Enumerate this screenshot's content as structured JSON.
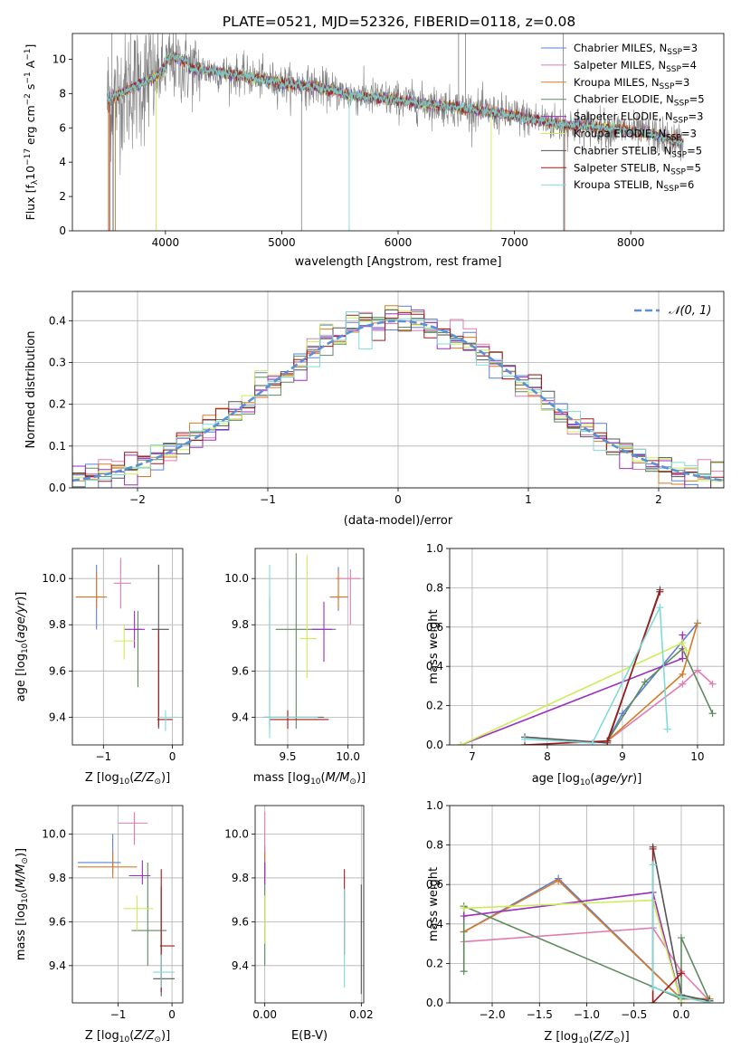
{
  "figure_title": "PLATE=0521, MJD=52326, FIBERID=0118, z=0.08",
  "colors": {
    "Chabrier MILES": "#5b7fd6",
    "Salpeter MILES": "#e27bb2",
    "Kroupa MILES": "#d77a25",
    "Chabrier ELODIE": "#5e8a5e",
    "Salpeter ELODIE": "#9b2fbf",
    "Kroupa ELODIE": "#cdec5a",
    "Chabrier STELIB": "#555555",
    "Salpeter STELIB": "#a11a1a",
    "Kroupa STELIB": "#7fdada",
    "data": "#7f7f7f",
    "normal": "#5b8fd6"
  },
  "spectrum_legend": [
    {
      "name": "Chabrier MILES",
      "label": "Chabrier MILES, N",
      "sub": "SSP",
      "val": "=3"
    },
    {
      "name": "Salpeter MILES",
      "label": "Salpeter MILES, N",
      "sub": "SSP",
      "val": "=4"
    },
    {
      "name": "Kroupa MILES",
      "label": "Kroupa MILES, N",
      "sub": "SSP",
      "val": "=3"
    },
    {
      "name": "Chabrier ELODIE",
      "label": "Chabrier ELODIE, N",
      "sub": "SSP",
      "val": "=5"
    },
    {
      "name": "Salpeter ELODIE",
      "label": "Salpeter ELODIE, N",
      "sub": "SSP",
      "val": "=3"
    },
    {
      "name": "Kroupa ELODIE",
      "label": "Kroupa ELODIE, N",
      "sub": "SSP",
      "val": "=3"
    },
    {
      "name": "Chabrier STELIB",
      "label": "Chabrier STELIB, N",
      "sub": "SSP",
      "val": "=5"
    },
    {
      "name": "Salpeter STELIB",
      "label": "Salpeter STELIB, N",
      "sub": "SSP",
      "val": "=5"
    },
    {
      "name": "Kroupa STELIB",
      "label": "Kroupa STELIB, N",
      "sub": "SSP",
      "val": "=6"
    }
  ],
  "chart_data": [
    {
      "id": "spectrum",
      "type": "line",
      "xlabel": "wavelength [Angstrom, rest frame]",
      "ylabel": "Flux [f",
      "ylabel_parts": [
        "Flux [f",
        "λ",
        "10",
        "−17",
        " erg cm",
        "−2",
        " s",
        "−1",
        " A",
        "−1",
        "]"
      ],
      "xlim": [
        3200,
        8800
      ],
      "ylim": [
        0,
        11.5
      ],
      "xticks": [
        4000,
        5000,
        6000,
        7000,
        8000
      ],
      "yticks": [
        0,
        2,
        4,
        6,
        8,
        10
      ],
      "anchors": [
        [
          3500,
          7.6
        ],
        [
          3700,
          8.3
        ],
        [
          3900,
          8.9
        ],
        [
          4050,
          9.8
        ],
        [
          4150,
          9.5
        ],
        [
          4400,
          9.3
        ],
        [
          4700,
          9.0
        ],
        [
          5000,
          8.6
        ],
        [
          5300,
          8.4
        ],
        [
          5600,
          7.9
        ],
        [
          6000,
          7.6
        ],
        [
          6500,
          7.2
        ],
        [
          7000,
          6.7
        ],
        [
          7400,
          6.2
        ],
        [
          7900,
          5.9
        ],
        [
          8200,
          5.6
        ],
        [
          8500,
          5.0
        ]
      ],
      "grid": false,
      "legend": "upper-right"
    },
    {
      "id": "residuals",
      "type": "histogram",
      "xlabel": "(data-model)/error",
      "ylabel": "Normed distribution",
      "xlim": [
        -2.5,
        2.5
      ],
      "ylim": [
        0,
        0.47
      ],
      "xticks": [
        -2,
        -1,
        0,
        1,
        2
      ],
      "yticks": [
        0.0,
        0.1,
        0.2,
        0.3,
        0.4
      ],
      "bin_width": 0.1,
      "normal_label": "𝒩(0, 1)",
      "grid": true,
      "legend": "upper-right"
    },
    {
      "id": "age_vs_Z",
      "type": "errorbar",
      "xlabel": "Z [log10(Z/Z⊙)]",
      "xlabel_parts": [
        "Z [log",
        "10",
        "(",
        "Z/Z",
        "⊙",
        ")]"
      ],
      "ylabel_parts": [
        "age  [log",
        "10",
        "(",
        "age/yr",
        ")]"
      ],
      "xlim": [
        -1.45,
        0.15
      ],
      "ylim": [
        9.28,
        10.13
      ],
      "xticks": [
        -1,
        0
      ],
      "xticklabels": [
        "−1",
        "0"
      ],
      "yticks": [
        9.4,
        9.6,
        9.8,
        10.0
      ],
      "points": [
        {
          "m": "Chabrier MILES",
          "x": -1.1,
          "y": 9.92,
          "xl": -1.4,
          "xh": -0.95,
          "yl": 9.78,
          "yh": 10.06
        },
        {
          "m": "Salpeter MILES",
          "x": -0.75,
          "y": 9.98,
          "xl": -0.85,
          "xh": -0.6,
          "yl": 9.87,
          "yh": 10.09
        },
        {
          "m": "Kroupa MILES",
          "x": -1.1,
          "y": 9.92,
          "xl": -1.4,
          "xh": -0.95,
          "yl": 9.87,
          "yh": 10.03
        },
        {
          "m": "Chabrier ELODIE",
          "x": -0.5,
          "y": 9.78,
          "xl": -0.55,
          "xh": -0.45,
          "yl": 9.53,
          "yh": 9.86
        },
        {
          "m": "Salpeter ELODIE",
          "x": -0.55,
          "y": 9.78,
          "xl": -0.7,
          "xh": -0.4,
          "yl": 9.7,
          "yh": 9.86
        },
        {
          "m": "Kroupa ELODIE",
          "x": -0.7,
          "y": 9.73,
          "xl": -0.85,
          "xh": -0.55,
          "yl": 9.65,
          "yh": 9.8
        },
        {
          "m": "Chabrier STELIB",
          "x": -0.2,
          "y": 9.78,
          "xl": -0.3,
          "xh": -0.05,
          "yl": 9.35,
          "yh": 10.06
        },
        {
          "m": "Salpeter STELIB",
          "x": -0.2,
          "y": 9.39,
          "xl": -0.22,
          "xh": 0.0,
          "yl": 9.36,
          "yh": 9.78
        },
        {
          "m": "Kroupa STELIB",
          "x": -0.1,
          "y": 9.4,
          "xl": -0.2,
          "xh": 0.1,
          "yl": 9.34,
          "yh": 9.43
        }
      ]
    },
    {
      "id": "age_vs_mass",
      "type": "errorbar",
      "xlabel_parts": [
        "mass [log",
        "10",
        "(",
        "M/M",
        "⊙",
        ")]"
      ],
      "xlim": [
        9.23,
        10.13
      ],
      "ylim": [
        9.28,
        10.13
      ],
      "xticks": [
        9.5,
        10.0
      ],
      "xticklabels": [
        "9.5",
        "10.0"
      ],
      "yticks": [
        9.4,
        9.6,
        9.8,
        10.0
      ],
      "points": [
        {
          "m": "Chabrier MILES",
          "x": 9.92,
          "y": 9.92,
          "xl": 9.85,
          "xh": 10.0,
          "yl": 9.86,
          "yh": 10.05
        },
        {
          "m": "Salpeter MILES",
          "x": 10.02,
          "y": 10.0,
          "xl": 9.9,
          "xh": 10.1,
          "yl": 9.8,
          "yh": 10.04
        },
        {
          "m": "Kroupa MILES",
          "x": 9.92,
          "y": 9.92,
          "xl": 9.85,
          "xh": 10.0,
          "yl": 9.87,
          "yh": 10.03
        },
        {
          "m": "Chabrier ELODIE",
          "x": 9.57,
          "y": 9.78,
          "xl": 9.4,
          "xh": 9.9,
          "yl": 9.35,
          "yh": 10.11
        },
        {
          "m": "Salpeter ELODIE",
          "x": 9.8,
          "y": 9.78,
          "xl": 9.7,
          "xh": 9.87,
          "yl": 9.64,
          "yh": 9.9
        },
        {
          "m": "Kroupa ELODIE",
          "x": 9.66,
          "y": 9.74,
          "xl": 9.6,
          "xh": 9.74,
          "yl": 9.57,
          "yh": 10.1
        },
        {
          "m": "Chabrier STELIB",
          "x": 9.35,
          "y": 9.4,
          "xl": 9.3,
          "xh": 9.8,
          "yl": 9.35,
          "yh": 9.92
        },
        {
          "m": "Salpeter STELIB",
          "x": 9.5,
          "y": 9.39,
          "xl": 9.35,
          "xh": 9.84,
          "yl": 9.35,
          "yh": 9.43
        },
        {
          "m": "Kroupa STELIB",
          "x": 9.35,
          "y": 9.4,
          "xl": 9.3,
          "xh": 9.75,
          "yl": 9.31,
          "yh": 10.06
        }
      ]
    },
    {
      "id": "massweight_vs_age",
      "type": "line",
      "xlabel_parts": [
        "age  [log",
        "10",
        "(",
        "age/yr",
        ")]"
      ],
      "ylabel": "mass weight",
      "xlim": [
        6.7,
        10.35
      ],
      "ylim": [
        0,
        1.0
      ],
      "xticks": [
        7,
        8,
        9,
        10
      ],
      "yticks": [
        0.0,
        0.2,
        0.4,
        0.6,
        0.8,
        1.0
      ],
      "series": [
        {
          "m": "Chabrier MILES",
          "x": [
            8.8,
            9.0,
            10.0
          ],
          "y": [
            0.02,
            0.16,
            0.62
          ]
        },
        {
          "m": "Salpeter MILES",
          "x": [
            8.8,
            9.8,
            10.0,
            10.2
          ],
          "y": [
            0.02,
            0.31,
            0.38,
            0.31
          ]
        },
        {
          "m": "Kroupa MILES",
          "x": [
            8.8,
            9.8,
            10.0
          ],
          "y": [
            0.02,
            0.36,
            0.62
          ]
        },
        {
          "m": "Chabrier ELODIE",
          "x": [
            8.8,
            9.3,
            9.8,
            10.2
          ],
          "y": [
            0.02,
            0.32,
            0.49,
            0.16
          ]
        },
        {
          "m": "Salpeter ELODIE",
          "x": [
            6.85,
            9.8,
            9.8
          ],
          "y": [
            0.0,
            0.44,
            0.56
          ]
        },
        {
          "m": "Kroupa ELODIE",
          "x": [
            6.85,
            9.8,
            9.85
          ],
          "y": [
            0.0,
            0.52,
            0.48
          ]
        },
        {
          "m": "Chabrier STELIB",
          "x": [
            7.7,
            8.8,
            9.5
          ],
          "y": [
            0.04,
            0.01,
            0.79
          ]
        },
        {
          "m": "Salpeter STELIB",
          "x": [
            7.7,
            8.8,
            9.5
          ],
          "y": [
            0.0,
            0.02,
            0.78
          ]
        },
        {
          "m": "Kroupa STELIB",
          "x": [
            7.7,
            8.6,
            9.5,
            9.6
          ],
          "y": [
            0.03,
            0.01,
            0.7,
            0.08
          ]
        }
      ]
    },
    {
      "id": "mass_vs_Z",
      "type": "errorbar",
      "xlabel_parts": [
        "Z [log",
        "10",
        "(",
        "Z/Z",
        "⊙",
        ")]"
      ],
      "ylabel_parts": [
        "mass [log",
        "10",
        "(",
        "M/M",
        "⊙",
        ")]"
      ],
      "xlim": [
        -1.85,
        0.2
      ],
      "ylim": [
        9.23,
        10.13
      ],
      "xticks": [
        -1,
        0
      ],
      "xticklabels": [
        "−1",
        "0"
      ],
      "yticks": [
        9.4,
        9.6,
        9.8,
        10.0
      ],
      "points": [
        {
          "m": "Chabrier MILES",
          "x": -1.1,
          "y": 9.87,
          "xl": -1.75,
          "xh": -0.95,
          "yl": 9.82,
          "yh": 10.0
        },
        {
          "m": "Salpeter MILES",
          "x": -0.7,
          "y": 10.05,
          "xl": -1.0,
          "xh": -0.45,
          "yl": 9.95,
          "yh": 10.1
        },
        {
          "m": "Kroupa MILES",
          "x": -1.1,
          "y": 9.85,
          "xl": -1.75,
          "xh": -0.65,
          "yl": 9.8,
          "yh": 9.92
        },
        {
          "m": "Chabrier ELODIE",
          "x": -0.45,
          "y": 9.56,
          "xl": -0.75,
          "xh": -0.1,
          "yl": 9.4,
          "yh": 9.87
        },
        {
          "m": "Salpeter ELODIE",
          "x": -0.55,
          "y": 9.81,
          "xl": -0.8,
          "xh": -0.4,
          "yl": 9.77,
          "yh": 9.88
        },
        {
          "m": "Kroupa ELODIE",
          "x": -0.65,
          "y": 9.66,
          "xl": -0.9,
          "xh": -0.35,
          "yl": 9.56,
          "yh": 9.72
        },
        {
          "m": "Chabrier STELIB",
          "x": -0.2,
          "y": 9.34,
          "xl": -0.35,
          "xh": 0.05,
          "yl": 9.26,
          "yh": 9.76
        },
        {
          "m": "Salpeter STELIB",
          "x": -0.2,
          "y": 9.49,
          "xl": -0.22,
          "xh": 0.05,
          "yl": 9.28,
          "yh": 9.84
        },
        {
          "m": "Kroupa STELIB",
          "x": -0.2,
          "y": 9.37,
          "xl": -0.35,
          "xh": 0.05,
          "yl": 9.3,
          "yh": 9.45
        }
      ]
    },
    {
      "id": "mass_vs_EBV",
      "type": "errorbar",
      "xlabel": "E(B-V)",
      "xlim": [
        -0.002,
        0.0205
      ],
      "ylim": [
        9.23,
        10.13
      ],
      "xticks": [
        0.0,
        0.02
      ],
      "xticklabels": [
        "0.00",
        "0.02"
      ],
      "yticks": [
        9.4,
        9.6,
        9.8,
        10.0
      ],
      "points": [
        {
          "m": "Chabrier MILES",
          "x": 0.0,
          "y": 9.87,
          "yl": 9.82,
          "yh": 9.95
        },
        {
          "m": "Salpeter MILES",
          "x": 0.0,
          "y": 10.0,
          "yl": 9.9,
          "yh": 10.1
        },
        {
          "m": "Kroupa MILES",
          "x": 0.0,
          "y": 9.85,
          "yl": 9.8,
          "yh": 9.92
        },
        {
          "m": "Chabrier ELODIE",
          "x": 0.0,
          "y": 9.55,
          "yl": 9.4,
          "yh": 9.87
        },
        {
          "m": "Salpeter ELODIE",
          "x": 0.0,
          "y": 9.81,
          "yl": 9.77,
          "yh": 9.87
        },
        {
          "m": "Kroupa ELODIE",
          "x": 0.0,
          "y": 9.66,
          "yl": 9.5,
          "yh": 9.72
        },
        {
          "m": "Chabrier STELIB",
          "x": 0.02,
          "y": 9.5,
          "yl": 9.27,
          "yh": 9.77
        },
        {
          "m": "Salpeter STELIB",
          "x": 0.0165,
          "y": 9.6,
          "yl": 9.45,
          "yh": 9.84
        },
        {
          "m": "Kroupa STELIB",
          "x": 0.0165,
          "y": 9.55,
          "yl": 9.3,
          "yh": 9.75
        }
      ]
    },
    {
      "id": "massweight_vs_Z",
      "type": "line",
      "xlabel_parts": [
        "Z [log",
        "10",
        "(",
        "Z/Z",
        "⊙",
        ")]"
      ],
      "ylabel": "mass weight",
      "xlim": [
        -2.45,
        0.45
      ],
      "ylim": [
        0,
        1.0
      ],
      "xticks": [
        -2.0,
        -1.5,
        -1.0,
        -0.5,
        0.0
      ],
      "xticklabels": [
        "−2.0",
        "−1.5",
        "−1.0",
        "−0.5",
        "0.0"
      ],
      "yticks": [
        0.0,
        0.2,
        0.4,
        0.6,
        0.8,
        1.0
      ],
      "series": [
        {
          "m": "Chabrier MILES",
          "x": [
            -2.3,
            -1.3,
            0.0,
            0.3
          ],
          "y": [
            0.36,
            0.63,
            0.02,
            0.02
          ]
        },
        {
          "m": "Salpeter MILES",
          "x": [
            -2.3,
            -0.3,
            0.0,
            0.3
          ],
          "y": [
            0.31,
            0.38,
            0.16,
            0.01
          ]
        },
        {
          "m": "Kroupa MILES",
          "x": [
            -2.3,
            -1.3,
            0.0,
            0.3
          ],
          "y": [
            0.36,
            0.62,
            0.02,
            0.02
          ]
        },
        {
          "m": "Chabrier ELODIE",
          "x": [
            -2.3,
            -2.3,
            0.0,
            0.0,
            0.3
          ],
          "y": [
            0.16,
            0.49,
            0.02,
            0.33,
            0.01
          ]
        },
        {
          "m": "Salpeter ELODIE",
          "x": [
            -2.3,
            -0.3,
            0.0
          ],
          "y": [
            0.44,
            0.56,
            0.0
          ]
        },
        {
          "m": "Kroupa ELODIE",
          "x": [
            -2.3,
            -0.3,
            0.0
          ],
          "y": [
            0.48,
            0.52,
            0.0
          ]
        },
        {
          "m": "Chabrier STELIB",
          "x": [
            -0.3,
            0.0,
            0.3
          ],
          "y": [
            0.79,
            0.04,
            0.01
          ]
        },
        {
          "m": "Salpeter STELIB",
          "x": [
            -0.3,
            -0.3,
            0.0
          ],
          "y": [
            0.78,
            0.0,
            0.15
          ]
        },
        {
          "m": "Kroupa STELIB",
          "x": [
            -0.3,
            -0.3,
            0.0,
            0.3
          ],
          "y": [
            0.7,
            0.08,
            0.03,
            0.0
          ]
        }
      ]
    }
  ]
}
